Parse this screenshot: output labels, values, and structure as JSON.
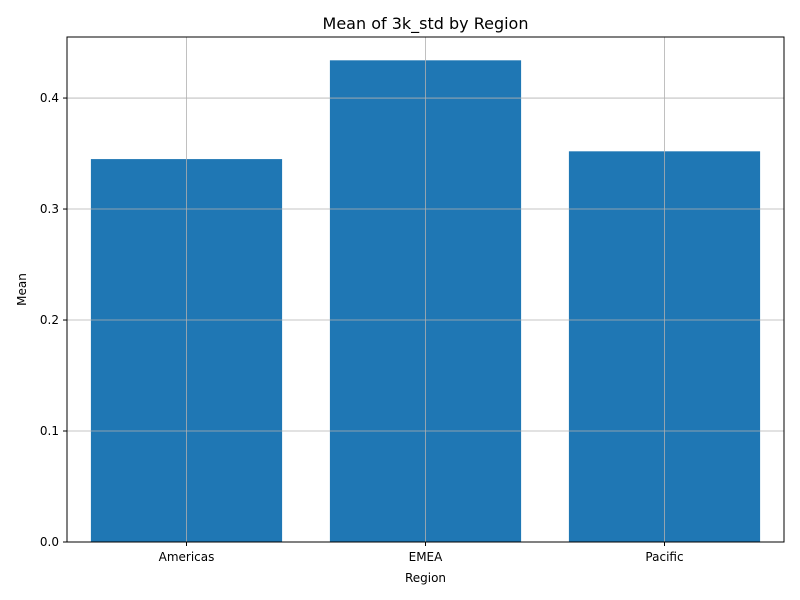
{
  "chart_data": {
    "type": "bar",
    "title": "Mean of 3k_std by Region",
    "xlabel": "Region",
    "ylabel": "Mean",
    "categories": [
      "Americas",
      "EMEA",
      "Pacific"
    ],
    "values": [
      0.345,
      0.434,
      0.352
    ],
    "ylim": [
      0,
      0.455
    ],
    "yticks": [
      0.0,
      0.1,
      0.2,
      0.3,
      0.4
    ],
    "ytick_labels": [
      "0.0",
      "0.1",
      "0.2",
      "0.3",
      "0.4"
    ],
    "grid": true,
    "bar_color": "#1f77b4"
  }
}
